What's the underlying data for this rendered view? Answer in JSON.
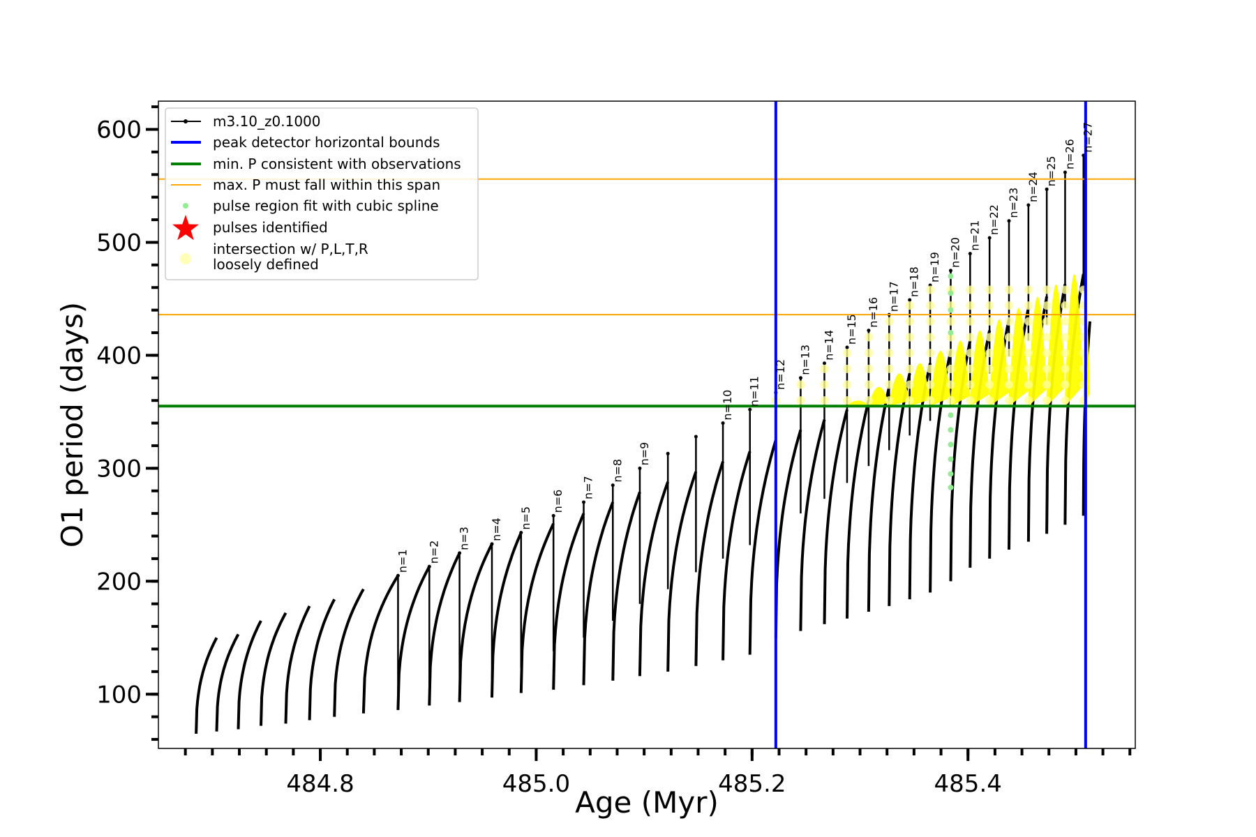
{
  "chart_data": {
    "type": "line",
    "title": "",
    "xlabel": "Age (Myr)",
    "ylabel": "O1 period (days)",
    "xlim": [
      484.65,
      485.555
    ],
    "ylim": [
      52,
      625
    ],
    "x_ticks": [
      "484.8",
      "485.0",
      "485.2",
      "485.4"
    ],
    "x_tick_values": [
      484.8,
      485.0,
      485.2,
      485.4
    ],
    "y_ticks": [
      "100",
      "200",
      "300",
      "400",
      "500",
      "600"
    ],
    "y_tick_values": [
      100,
      200,
      300,
      400,
      500,
      600
    ],
    "series_name": "m3.10_z0.1000",
    "pulse_cycles": [
      {
        "start": 484.685,
        "end": 484.704,
        "min": 65,
        "peak": 150
      },
      {
        "start": 484.704,
        "end": 484.724,
        "min": 67,
        "peak": 153
      },
      {
        "start": 484.724,
        "end": 484.745,
        "min": 69,
        "peak": 165
      },
      {
        "start": 484.745,
        "end": 484.768,
        "min": 72,
        "peak": 172
      },
      {
        "start": 484.768,
        "end": 484.79,
        "min": 74,
        "peak": 178
      },
      {
        "start": 484.79,
        "end": 484.813,
        "min": 77,
        "peak": 184
      },
      {
        "start": 484.813,
        "end": 484.84,
        "min": 80,
        "peak": 193
      },
      {
        "start": 484.84,
        "end": 484.872,
        "min": 83,
        "peak": 205
      },
      {
        "start": 484.872,
        "end": 484.901,
        "min": 86,
        "peak": 213
      },
      {
        "start": 484.901,
        "end": 484.929,
        "min": 90,
        "peak": 225
      },
      {
        "start": 484.929,
        "end": 484.959,
        "min": 93,
        "peak": 233
      },
      {
        "start": 484.959,
        "end": 484.986,
        "min": 97,
        "peak": 243
      },
      {
        "start": 484.986,
        "end": 485.016,
        "min": 101,
        "peak": 251
      },
      {
        "start": 485.016,
        "end": 485.044,
        "min": 104,
        "peak": 260
      },
      {
        "start": 485.044,
        "end": 485.071,
        "min": 108,
        "peak": 270
      },
      {
        "start": 485.071,
        "end": 485.096,
        "min": 112,
        "peak": 279
      },
      {
        "start": 485.096,
        "end": 485.122,
        "min": 116,
        "peak": 288
      },
      {
        "start": 485.122,
        "end": 485.148,
        "min": 120,
        "peak": 297
      },
      {
        "start": 485.148,
        "end": 485.173,
        "min": 125,
        "peak": 306
      },
      {
        "start": 485.173,
        "end": 485.198,
        "min": 130,
        "peak": 315
      },
      {
        "start": 485.198,
        "end": 485.222,
        "min": 135,
        "peak": 325
      },
      {
        "start": 485.222,
        "end": 485.245,
        "min": 150,
        "peak": 334
      },
      {
        "start": 485.245,
        "end": 485.267,
        "min": 156,
        "peak": 343
      },
      {
        "start": 485.267,
        "end": 485.288,
        "min": 162,
        "peak": 352
      },
      {
        "start": 485.288,
        "end": 485.308,
        "min": 167,
        "peak": 360
      },
      {
        "start": 485.308,
        "end": 485.327,
        "min": 173,
        "peak": 372
      },
      {
        "start": 485.327,
        "end": 485.346,
        "min": 178,
        "peak": 384
      },
      {
        "start": 485.346,
        "end": 485.365,
        "min": 184,
        "peak": 393
      },
      {
        "start": 485.365,
        "end": 485.384,
        "min": 190,
        "peak": 404
      },
      {
        "start": 485.384,
        "end": 485.402,
        "min": 200,
        "peak": 413
      },
      {
        "start": 485.402,
        "end": 485.42,
        "min": 212,
        "peak": 422
      },
      {
        "start": 485.42,
        "end": 485.438,
        "min": 220,
        "peak": 432
      },
      {
        "start": 485.438,
        "end": 485.456,
        "min": 228,
        "peak": 442
      },
      {
        "start": 485.456,
        "end": 485.473,
        "min": 235,
        "peak": 452
      },
      {
        "start": 485.473,
        "end": 485.49,
        "min": 242,
        "peak": 463
      },
      {
        "start": 485.49,
        "end": 485.507,
        "min": 250,
        "peak": 472
      },
      {
        "start": 485.507,
        "end": 485.513,
        "min": 258,
        "peak": 430
      }
    ],
    "spikes": [
      {
        "x": 484.872,
        "top": 205,
        "label": "n=1"
      },
      {
        "x": 484.901,
        "top": 213,
        "label": "n=2"
      },
      {
        "x": 484.929,
        "top": 225,
        "label": "n=3"
      },
      {
        "x": 484.959,
        "top": 233,
        "label": "n=4"
      },
      {
        "x": 484.986,
        "top": 243,
        "label": "n=5"
      },
      {
        "x": 485.016,
        "top": 258,
        "label": "n=6"
      },
      {
        "x": 485.044,
        "top": 270,
        "label": "n=7"
      },
      {
        "x": 485.071,
        "top": 285,
        "label": "n=8"
      },
      {
        "x": 485.096,
        "top": 300,
        "label": "n=9"
      },
      {
        "x": 485.122,
        "top": 313
      },
      {
        "x": 485.148,
        "top": 328
      },
      {
        "x": 485.173,
        "top": 340,
        "label": "n=10"
      },
      {
        "x": 485.198,
        "top": 352,
        "label": "n=11"
      },
      {
        "x": 485.222,
        "top": 367,
        "label": "n=12"
      },
      {
        "x": 485.245,
        "top": 380,
        "label": "n=13"
      },
      {
        "x": 485.267,
        "top": 393,
        "label": "n=14"
      },
      {
        "x": 485.288,
        "top": 407,
        "label": "n=15"
      },
      {
        "x": 485.308,
        "top": 422,
        "label": "n=16"
      },
      {
        "x": 485.327,
        "top": 436,
        "label": "n=17"
      },
      {
        "x": 485.346,
        "top": 449,
        "label": "n=18"
      },
      {
        "x": 485.365,
        "top": 462,
        "label": "n=19"
      },
      {
        "x": 485.384,
        "top": 475,
        "label": "n=20"
      },
      {
        "x": 485.402,
        "top": 490,
        "label": "n=21"
      },
      {
        "x": 485.42,
        "top": 504,
        "label": "n=22"
      },
      {
        "x": 485.438,
        "top": 519,
        "label": "n=23"
      },
      {
        "x": 485.456,
        "top": 533,
        "label": "n=24"
      },
      {
        "x": 485.473,
        "top": 547,
        "label": "n=25"
      },
      {
        "x": 485.49,
        "top": 562,
        "label": "n=26"
      },
      {
        "x": 485.507,
        "top": 577,
        "label": "n=27"
      }
    ],
    "green_dots": [
      {
        "x": 485.384,
        "y": 283
      },
      {
        "x": 485.384,
        "y": 295
      },
      {
        "x": 485.384,
        "y": 308
      },
      {
        "x": 485.384,
        "y": 321
      },
      {
        "x": 485.384,
        "y": 334
      },
      {
        "x": 485.384,
        "y": 347
      },
      {
        "x": 485.384,
        "y": 420
      },
      {
        "x": 485.384,
        "y": 440
      },
      {
        "x": 485.384,
        "y": 455
      },
      {
        "x": 485.384,
        "y": 470
      }
    ],
    "reference_lines": {
      "peak_detector_bounds_x": [
        485.222,
        485.509
      ],
      "min_P": 355,
      "max_P_span": [
        436,
        556
      ]
    },
    "legend": {
      "position": "top-left",
      "entries": [
        {
          "label": "m3.10_z0.1000",
          "marker": "line-dot",
          "color": "#000000"
        },
        {
          "label": "peak detector horizontal bounds",
          "marker": "line",
          "color": "#0000ff"
        },
        {
          "label": "min. P consistent with observations",
          "marker": "line",
          "color": "#008000"
        },
        {
          "label": "max. P must fall within this span",
          "marker": "line",
          "color": "#ffa500"
        },
        {
          "label": "pulse region fit with cubic spline",
          "marker": "dot",
          "color": "#90ee90"
        },
        {
          "label": "pulses identified",
          "marker": "star",
          "color": "#ff0000"
        },
        {
          "label": "intersection w/ P,L,T,R",
          "label_line2": "loosely defined",
          "marker": "circle",
          "color": "#ffff99"
        }
      ]
    },
    "colors": {
      "track": "#000000",
      "blue": "#0000ff",
      "green": "#008000",
      "orange": "#ffa500",
      "yellow": "#ffff00",
      "light_green": "#90ee90",
      "pale_yellow": "#ffff99",
      "red": "#ff0000"
    }
  }
}
